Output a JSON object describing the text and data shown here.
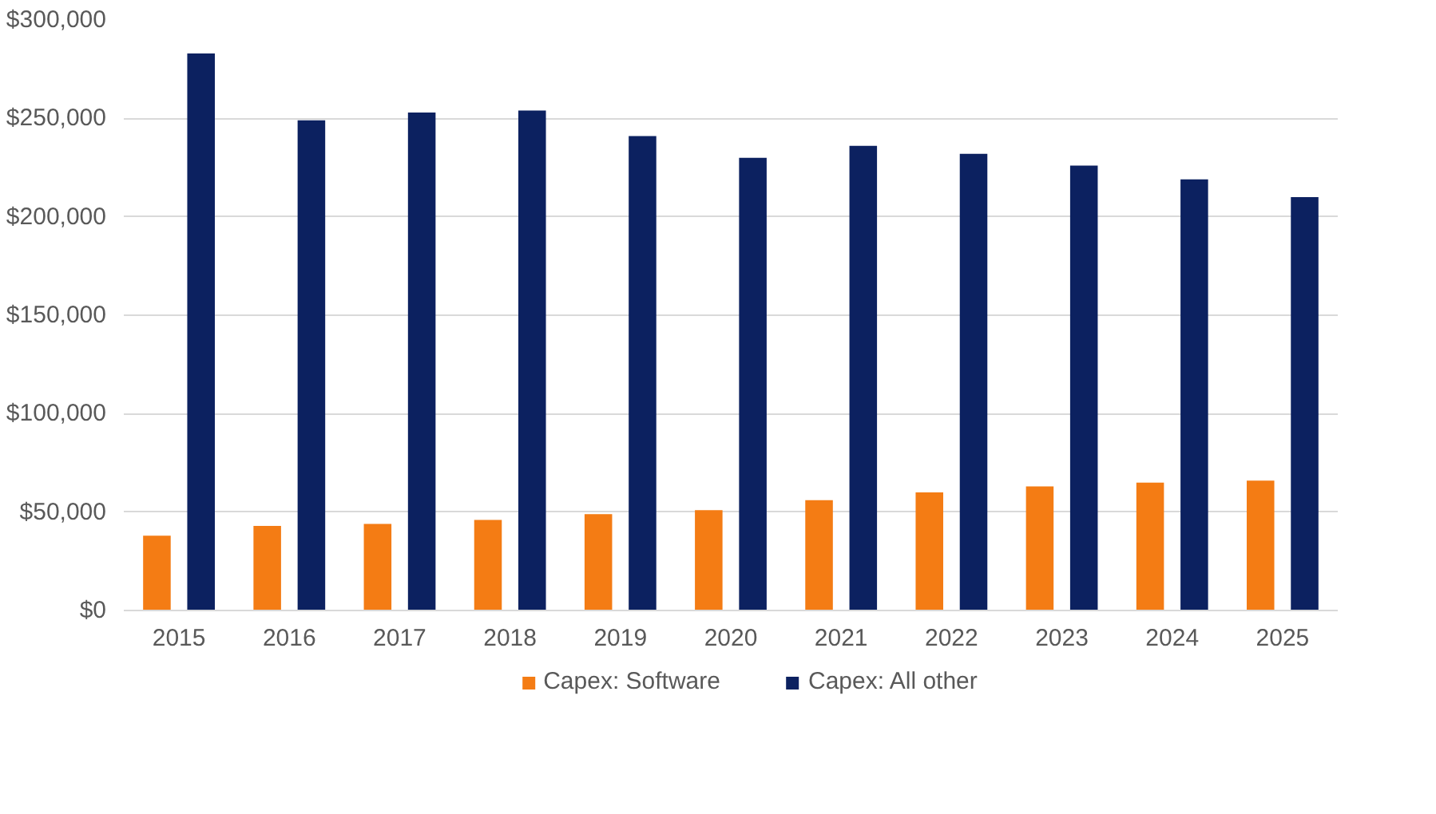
{
  "chart_data": {
    "type": "bar",
    "categories": [
      "2015",
      "2016",
      "2017",
      "2018",
      "2019",
      "2020",
      "2021",
      "2022",
      "2023",
      "2024",
      "2025"
    ],
    "series": [
      {
        "name": "Capex: Software",
        "color": "#f47c14",
        "values": [
          38000,
          43000,
          44000,
          46000,
          49000,
          51000,
          56000,
          60000,
          63000,
          65000,
          66000
        ]
      },
      {
        "name": "Capex: All other",
        "color": "#0c2160",
        "values": [
          283000,
          249000,
          253000,
          254000,
          241000,
          230000,
          236000,
          232000,
          226000,
          219000,
          210000
        ]
      }
    ],
    "ylim": [
      0,
      300000
    ],
    "yticks": [
      {
        "value": 0,
        "label": "$0"
      },
      {
        "value": 50000,
        "label": "$50,000"
      },
      {
        "value": 100000,
        "label": "$100,000"
      },
      {
        "value": 150000,
        "label": "$150,000"
      },
      {
        "value": 200000,
        "label": "$200,000"
      },
      {
        "value": 250000,
        "label": "$250,000"
      },
      {
        "value": 300000,
        "label": "$300,000"
      }
    ],
    "grid": "y",
    "legend": "bottom"
  }
}
